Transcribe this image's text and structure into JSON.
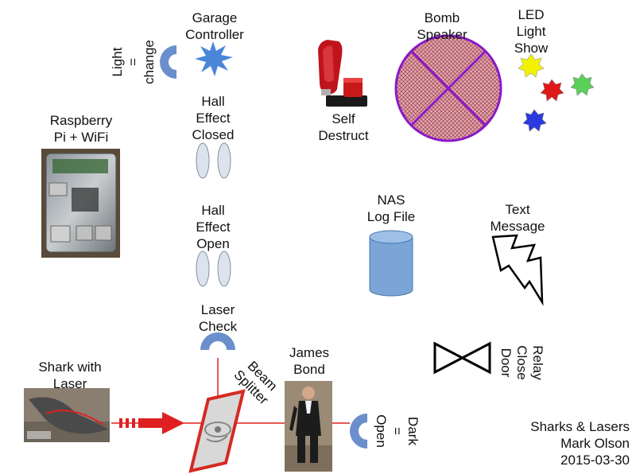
{
  "labels": {
    "garage_controller": [
      "Garage",
      "Controller"
    ],
    "light_change": [
      "Light",
      "=",
      "change"
    ],
    "self_destruct": [
      "Self",
      "Destruct"
    ],
    "bomb_speaker": [
      "Bomb",
      "Speaker"
    ],
    "led_light_show": [
      "LED",
      "Light",
      "Show"
    ],
    "raspberry_pi": [
      "Raspberry",
      "Pi + WiFi"
    ],
    "hall_closed": [
      "Hall",
      "Effect",
      "Closed"
    ],
    "hall_open": [
      "Hall",
      "Effect",
      "Open"
    ],
    "nas_log": [
      "NAS",
      "Log File"
    ],
    "text_message": [
      "Text",
      "Message"
    ],
    "laser_check": [
      "Laser",
      "Check"
    ],
    "relay_close_door": [
      "Relay",
      "Close",
      "Door"
    ],
    "shark_laser": [
      "Shark with",
      "Laser"
    ],
    "beam_splitter": [
      "Beam",
      "Splitter"
    ],
    "james_bond": [
      "James",
      "Bond"
    ],
    "dark_open": [
      "Dark",
      "=",
      "Open"
    ],
    "credit": [
      "Sharks & Lasers",
      "Mark Olson",
      "2015-03-30"
    ]
  },
  "colors": {
    "sensor_blue": "#6b8fcc",
    "garage_star": "#4a86d8",
    "laser_red": "#e02020",
    "bomb_purple": "#8b18c8",
    "bomb_fill": "#d9a0a8",
    "cylinder_blue": "#7aa5d6",
    "splitter_red": "#d42a22",
    "hall_fill": "#dde3ec",
    "led_colors": [
      "#f2f200",
      "#e01818",
      "#5ad05a",
      "#2a3ae0"
    ]
  },
  "icons": [
    "sensor-half-ring-icon",
    "burst-star-icon",
    "toggle-switch-icon",
    "crossed-circle-icon",
    "led-star-icon",
    "cylinder-icon",
    "lightning-bolt-icon",
    "bowtie-valve-icon",
    "laser-arrow-icon",
    "beam-splitter-icon"
  ]
}
